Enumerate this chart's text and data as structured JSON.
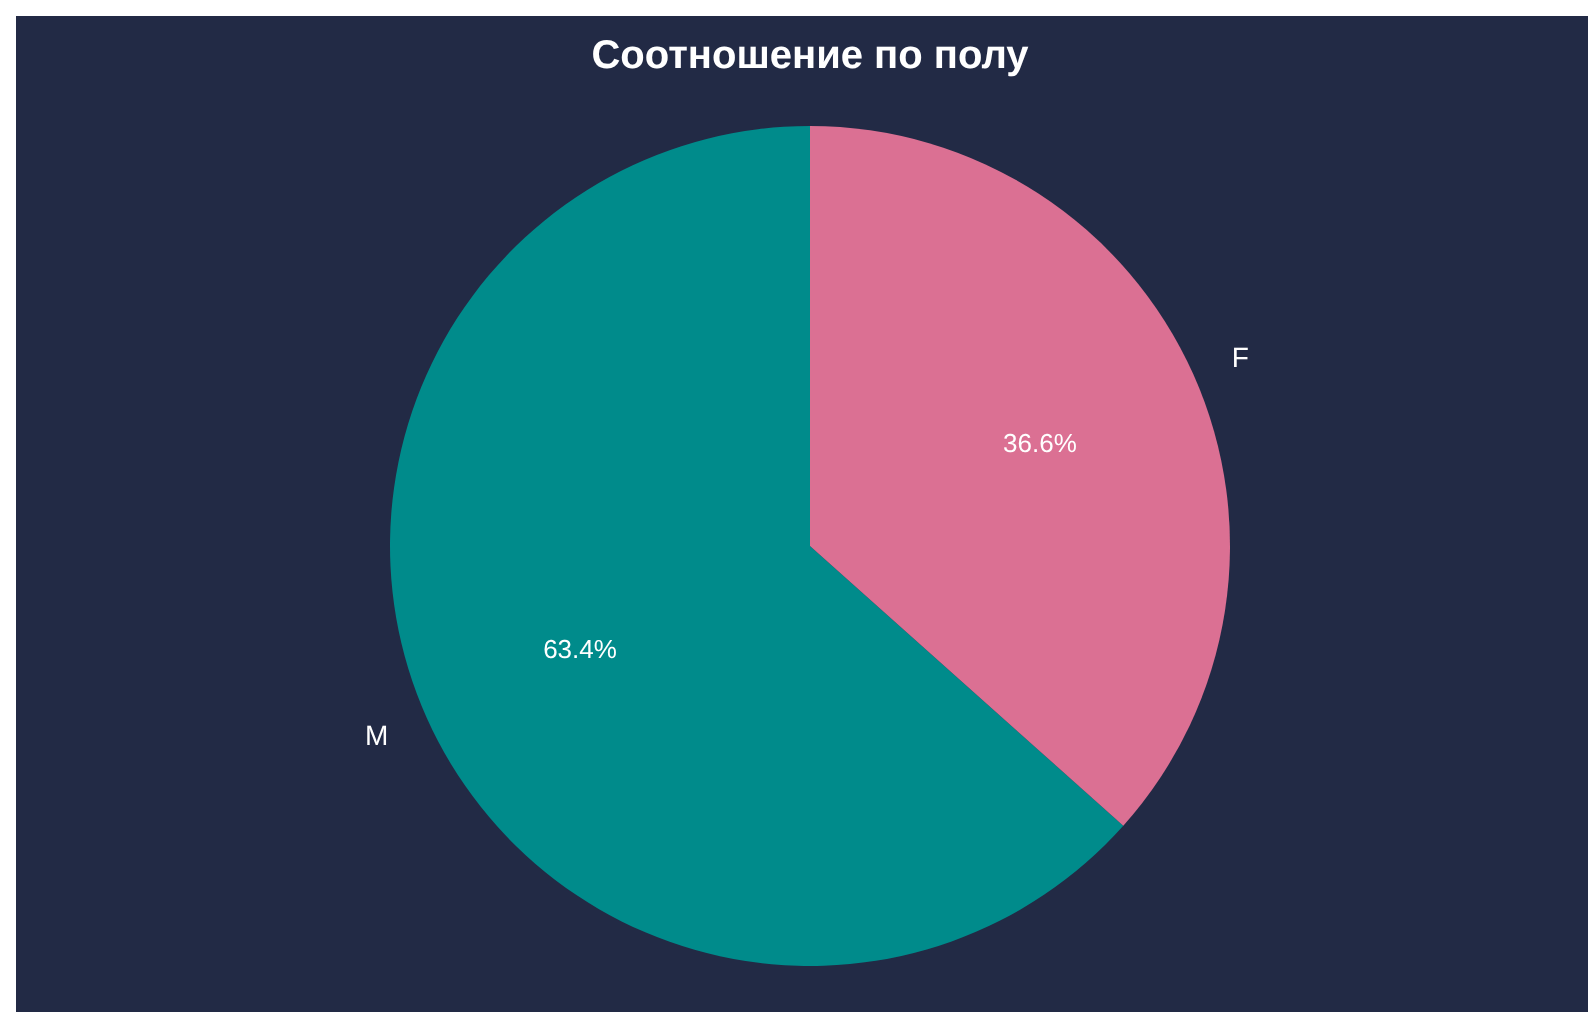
{
  "chart_data": {
    "type": "pie",
    "title": "Соотношение по полу",
    "categories": [
      "M",
      "F"
    ],
    "values": [
      63.4,
      36.6
    ],
    "colors": [
      "#008b8b",
      "#db7093"
    ],
    "value_labels": [
      "63.4%",
      "36.6%"
    ],
    "legend": false
  }
}
